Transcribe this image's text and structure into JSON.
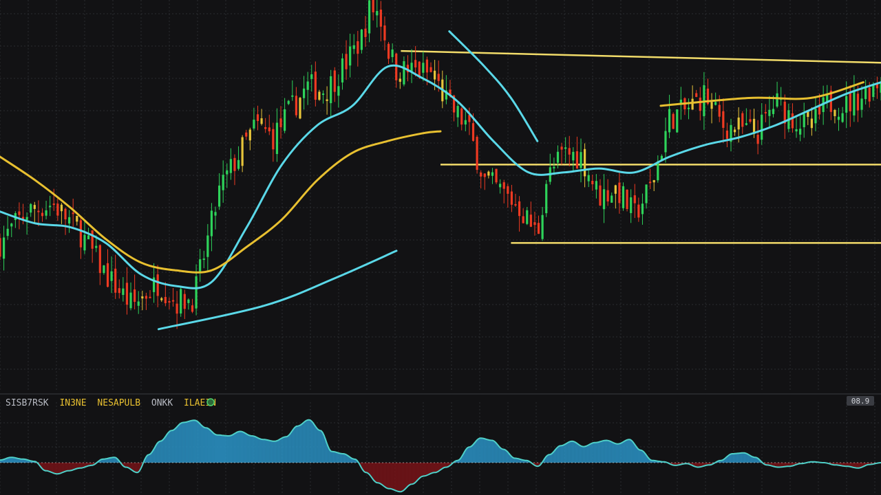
{
  "colors": {
    "background": "#121214",
    "grid": "#2a2c30",
    "candle_up": "#2ed35a",
    "candle_down": "#ee3a22",
    "candle_neutral": "#e6c43a",
    "ma_fast": "#5ad8e8",
    "ma_slow": "#e8c030",
    "level_line": "#f2dc6a",
    "histogram_pos": "#2a8fc0",
    "histogram_neg": "#7a1418",
    "signal_line": "#4fd0c8",
    "zero_line": "#d8d8d8",
    "legend_a": "#b9bcc4",
    "legend_b": "#e8c030",
    "legend_c": "#4fd06a"
  },
  "indicator_legend": {
    "label_a": "SISB7RSK",
    "label_b": "IN3NE",
    "label_c": "NESAPULB",
    "label_d": "ONKK",
    "label_e": "ILAEIN",
    "status_icon": "circle-status-icon"
  },
  "corner_badge": {
    "text": "08.9"
  },
  "chart_data": [
    {
      "type": "candlestick",
      "title": "",
      "xlabel": "",
      "ylabel": "",
      "grid": true,
      "x_range": [
        0,
        100
      ],
      "ylim": [
        0,
        100
      ],
      "close_anchors": [
        [
          0,
          38
        ],
        [
          3,
          46
        ],
        [
          6,
          48
        ],
        [
          9,
          41
        ],
        [
          12,
          30
        ],
        [
          15,
          22
        ],
        [
          18,
          28
        ],
        [
          20,
          23
        ],
        [
          22,
          24
        ],
        [
          25,
          52
        ],
        [
          27,
          60
        ],
        [
          29,
          68
        ],
        [
          31,
          65
        ],
        [
          33,
          72
        ],
        [
          35,
          78
        ],
        [
          37,
          77
        ],
        [
          39,
          83
        ],
        [
          41,
          90
        ],
        [
          42,
          98
        ],
        [
          43,
          97
        ],
        [
          44,
          88
        ],
        [
          45,
          82
        ],
        [
          47,
          82
        ],
        [
          49,
          81
        ],
        [
          51,
          73
        ],
        [
          53,
          68
        ],
        [
          55,
          54
        ],
        [
          57,
          51
        ],
        [
          59,
          47
        ],
        [
          61,
          40
        ],
        [
          62,
          54
        ],
        [
          64,
          61
        ],
        [
          66,
          60
        ],
        [
          68,
          50
        ],
        [
          70,
          52
        ],
        [
          72,
          45
        ],
        [
          74,
          53
        ],
        [
          76,
          70
        ],
        [
          78,
          72
        ],
        [
          80,
          76
        ],
        [
          82,
          68
        ],
        [
          84,
          67
        ],
        [
          86,
          66
        ],
        [
          88,
          74
        ],
        [
          90,
          70
        ],
        [
          92,
          67
        ],
        [
          94,
          74
        ],
        [
          96,
          73
        ],
        [
          98,
          76
        ],
        [
          100,
          80
        ]
      ],
      "moving_averages": [
        {
          "kind": "ma-fast",
          "points": [
            [
              0,
              46
            ],
            [
              4,
              43
            ],
            [
              8,
              42
            ],
            [
              12,
              38
            ],
            [
              16,
              30
            ],
            [
              20,
              27
            ],
            [
              24,
              28
            ],
            [
              28,
              42
            ],
            [
              32,
              58
            ],
            [
              36,
              68
            ],
            [
              40,
              73
            ],
            [
              44,
              83
            ],
            [
              48,
              80
            ],
            [
              52,
              74
            ],
            [
              56,
              64
            ],
            [
              60,
              56
            ],
            [
              64,
              56
            ],
            [
              68,
              57
            ],
            [
              72,
              56
            ],
            [
              76,
              60
            ],
            [
              80,
              63
            ],
            [
              84,
              65
            ],
            [
              88,
              68
            ],
            [
              92,
              72
            ],
            [
              96,
              76
            ],
            [
              100,
              79
            ]
          ]
        },
        {
          "kind": "ma-slow",
          "points": [
            [
              0,
              60
            ],
            [
              4,
              54
            ],
            [
              8,
              47
            ],
            [
              12,
              39
            ],
            [
              16,
              33
            ],
            [
              20,
              31
            ],
            [
              24,
              31
            ],
            [
              28,
              37
            ],
            [
              32,
              44
            ],
            [
              36,
              54
            ],
            [
              40,
              61
            ],
            [
              44,
              64
            ],
            [
              48,
              66
            ],
            [
              50,
              66.5
            ]
          ]
        }
      ],
      "trend_lines": [
        {
          "kind": "support-curve",
          "points": [
            [
              18,
              16
            ],
            [
              30,
              22
            ],
            [
              38,
              29
            ],
            [
              45,
              36
            ]
          ]
        },
        {
          "kind": "fast-decline",
          "points": [
            [
              51,
              92
            ],
            [
              55,
              83
            ],
            [
              58,
              75
            ],
            [
              61,
              64
            ]
          ]
        },
        {
          "kind": "yellow-rise",
          "points": [
            [
              75,
              73
            ],
            [
              85,
              75
            ],
            [
              92,
              75
            ],
            [
              98,
              79
            ]
          ]
        }
      ],
      "level_lines": [
        {
          "kind": "upper-resistance",
          "from": [
            45.5,
            87
          ],
          "to": [
            100,
            84
          ]
        },
        {
          "kind": "mid-level",
          "from": [
            50,
            58
          ],
          "to": [
            100,
            58
          ]
        },
        {
          "kind": "lower-support",
          "from": [
            58,
            38
          ],
          "to": [
            100,
            38
          ]
        }
      ]
    },
    {
      "type": "histogram",
      "title": "",
      "grid": true,
      "x_range": [
        0,
        100
      ],
      "ylim": [
        -1,
        1
      ],
      "values": [
        0.06,
        0.12,
        0.08,
        0.03,
        -0.18,
        -0.25,
        -0.18,
        -0.12,
        -0.06,
        0.08,
        0.12,
        -0.1,
        -0.22,
        0.18,
        0.48,
        0.72,
        0.9,
        0.95,
        0.78,
        0.62,
        0.6,
        0.7,
        0.6,
        0.52,
        0.48,
        0.58,
        0.82,
        0.96,
        0.72,
        0.25,
        0.2,
        0.08,
        -0.22,
        -0.45,
        -0.58,
        -0.65,
        -0.48,
        -0.3,
        -0.22,
        -0.1,
        0.05,
        0.35,
        0.55,
        0.5,
        0.3,
        0.1,
        0.05,
        -0.08,
        0.18,
        0.38,
        0.48,
        0.36,
        0.45,
        0.5,
        0.42,
        0.52,
        0.28,
        0.05,
        0.02,
        -0.06,
        -0.02,
        -0.1,
        -0.05,
        0.05,
        0.2,
        0.22,
        0.12,
        -0.05,
        -0.1,
        -0.08,
        -0.02,
        0.02,
        0.0,
        -0.05,
        -0.08,
        -0.12,
        -0.04,
        0.0
      ]
    }
  ]
}
